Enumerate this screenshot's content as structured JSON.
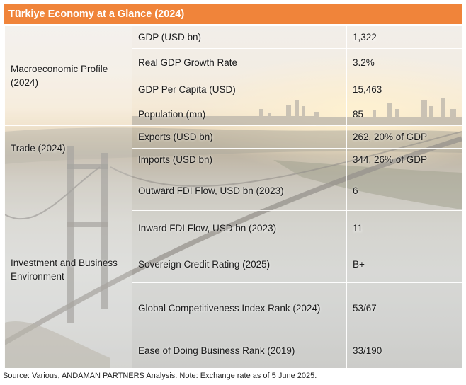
{
  "title": "Türkiye Economy at a Glance (2024)",
  "sections": [
    {
      "label": "Macroeconomic Profile (2024)"
    },
    {
      "label": "Trade (2024)"
    },
    {
      "label": "Investment and Business Environment"
    }
  ],
  "rows": [
    {
      "metric": "GDP (USD bn)",
      "value": "1,322"
    },
    {
      "metric": "Real GDP Growth Rate",
      "value": "3.2%"
    },
    {
      "metric": "GDP Per Capita (USD)",
      "value": "15,463"
    },
    {
      "metric": "Population (mn)",
      "value": "85"
    },
    {
      "metric": "Exports (USD bn)",
      "value": "262, 20% of GDP"
    },
    {
      "metric": "Imports (USD bn)",
      "value": "344, 26% of GDP"
    },
    {
      "metric": "Outward FDI Flow, USD bn (2023)",
      "value": "6"
    },
    {
      "metric": "Inward FDI Flow, USD bn (2023)",
      "value": "11"
    },
    {
      "metric": "Sovereign Credit Rating (2025)",
      "value": "B+"
    },
    {
      "metric": "Global Competitiveness Index Rank (2024)",
      "value": "53/67"
    },
    {
      "metric": "Ease of Doing Business Rank (2019)",
      "value": "33/190"
    }
  ],
  "source": "Source: Various, ANDAMAN PARTNERS Analysis. Note: Exchange rate as of 5 June 2025.",
  "colors": {
    "header": "#f0843a",
    "header_text": "#ffffff"
  }
}
